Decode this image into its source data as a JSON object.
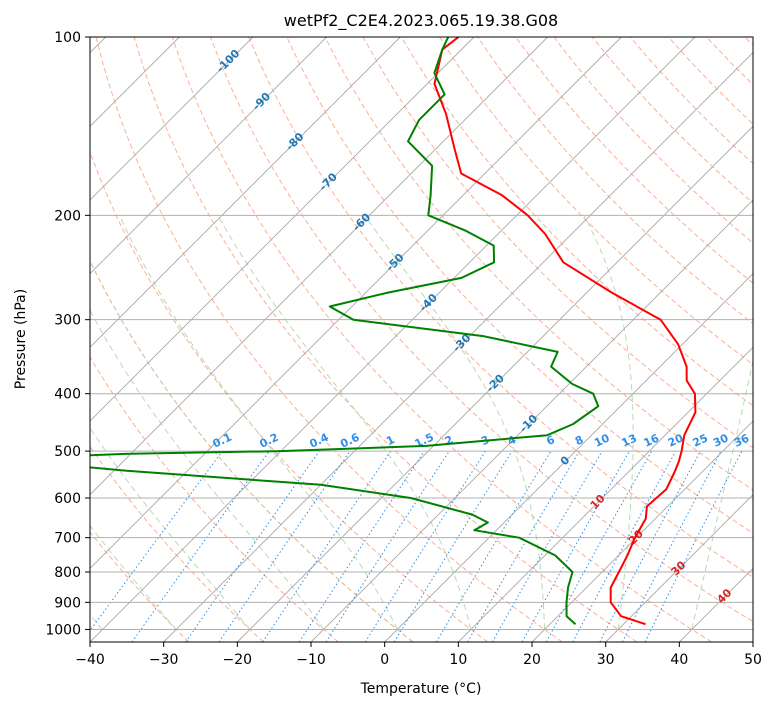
{
  "chart_data": {
    "type": "skew-t",
    "title": "wetPf2_C2E4.2023.065.19.38.G08",
    "xlabel": "Temperature (°C)",
    "ylabel": "Pressure (hPa)",
    "xlim": [
      -40,
      50
    ],
    "ylim": [
      1050,
      100
    ],
    "x_ticks": [
      -40,
      -30,
      -20,
      -10,
      0,
      10,
      20,
      30,
      40,
      50
    ],
    "x_tick_labels": [
      "−40",
      "−30",
      "−20",
      "−10",
      "0",
      "10",
      "20",
      "30",
      "40",
      "50"
    ],
    "y_ticks": [
      100,
      200,
      300,
      400,
      500,
      600,
      700,
      800,
      900,
      1000
    ],
    "y_tick_labels": [
      "100",
      "200",
      "300",
      "400",
      "500",
      "600",
      "700",
      "800",
      "900",
      "1000"
    ],
    "isotherm_labels": [
      "-100",
      "-90",
      "-80",
      "-70",
      "-60",
      "-50",
      "-40",
      "-30",
      "-20",
      "-10",
      "0",
      "10",
      "20",
      "30",
      "40"
    ],
    "isotherm_label_values": [
      -100,
      -90,
      -80,
      -70,
      -60,
      -50,
      -40,
      -30,
      -20,
      -10,
      0,
      10,
      20,
      30,
      40
    ],
    "mixing_ratio_labels": [
      "0.1",
      "0.2",
      "0.4",
      "0.6",
      "1",
      "1.5",
      "2",
      "3",
      "4",
      "6",
      "8",
      "10",
      "13",
      "16",
      "20",
      "25",
      "30",
      "36"
    ],
    "mixing_ratio_values": [
      0.1,
      0.2,
      0.4,
      0.6,
      1,
      1.5,
      2,
      3,
      4,
      6,
      8,
      10,
      13,
      16,
      20,
      25,
      30,
      36
    ],
    "series": [
      {
        "name": "Temperature",
        "color": "#ff0000",
        "points": [
          [
            980,
            33.0
          ],
          [
            950,
            28.6
          ],
          [
            900,
            25.3
          ],
          [
            850,
            23.3
          ],
          [
            800,
            22.3
          ],
          [
            750,
            21.2
          ],
          [
            700,
            19.8
          ],
          [
            650,
            18.7
          ],
          [
            620,
            17.2
          ],
          [
            580,
            17.5
          ],
          [
            540,
            16.2
          ],
          [
            520,
            15.4
          ],
          [
            500,
            14.4
          ],
          [
            470,
            12.6
          ],
          [
            430,
            11.0
          ],
          [
            400,
            8.4
          ],
          [
            380,
            5.5
          ],
          [
            360,
            3.6
          ],
          [
            330,
            -0.6
          ],
          [
            300,
            -6.3
          ],
          [
            270,
            -16.6
          ],
          [
            240,
            -27.3
          ],
          [
            215,
            -33.6
          ],
          [
            200,
            -38.5
          ],
          [
            185,
            -44.7
          ],
          [
            170,
            -53.2
          ],
          [
            155,
            -57.3
          ],
          [
            135,
            -63.3
          ],
          [
            120,
            -69.0
          ],
          [
            105,
            -72.6
          ],
          [
            100,
            -72.1
          ]
        ]
      },
      {
        "name": "Dewpoint",
        "color": "#008000",
        "points": [
          [
            980,
            23.5
          ],
          [
            950,
            21.2
          ],
          [
            900,
            19.3
          ],
          [
            850,
            17.5
          ],
          [
            800,
            16.0
          ],
          [
            750,
            11.4
          ],
          [
            700,
            4.1
          ],
          [
            680,
            -3.0
          ],
          [
            660,
            -2.2
          ],
          [
            640,
            -5.4
          ],
          [
            600,
            -16.0
          ],
          [
            570,
            -30.0
          ],
          [
            540,
            -58.0
          ],
          [
            515,
            -78.0
          ],
          [
            505,
            -60.0
          ],
          [
            500,
            -40.0
          ],
          [
            490,
            -21.0
          ],
          [
            470,
            -6.0
          ],
          [
            450,
            -4.0
          ],
          [
            420,
            -3.0
          ],
          [
            400,
            -5.4
          ],
          [
            385,
            -9.6
          ],
          [
            360,
            -14.8
          ],
          [
            340,
            -15.9
          ],
          [
            320,
            -28.0
          ],
          [
            300,
            -48.0
          ],
          [
            285,
            -53.0
          ],
          [
            270,
            -47.0
          ],
          [
            255,
            -39.0
          ],
          [
            240,
            -36.7
          ],
          [
            225,
            -39.0
          ],
          [
            212,
            -45.0
          ],
          [
            200,
            -52.0
          ],
          [
            185,
            -54.4
          ],
          [
            165,
            -58.2
          ],
          [
            150,
            -64.8
          ],
          [
            138,
            -66.2
          ],
          [
            125,
            -66.2
          ],
          [
            115,
            -70.5
          ],
          [
            105,
            -72.6
          ],
          [
            100,
            -73.5
          ]
        ]
      }
    ]
  }
}
